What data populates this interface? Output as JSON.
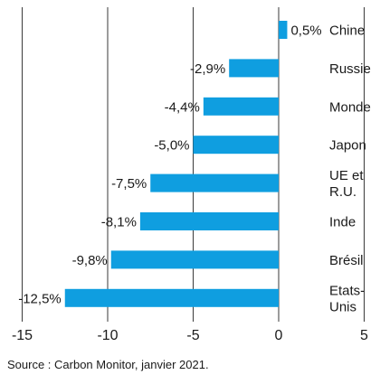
{
  "chart_data": {
    "type": "bar",
    "orientation": "horizontal",
    "categories": [
      [
        "Chine"
      ],
      [
        "Russie"
      ],
      [
        "Monde"
      ],
      [
        "Japon"
      ],
      [
        "UE et",
        "R.U."
      ],
      [
        "Inde"
      ],
      [
        "Brésil"
      ],
      [
        "Etats-",
        "Unis"
      ]
    ],
    "values": [
      0.5,
      -2.9,
      -4.4,
      -5.0,
      -7.5,
      -8.1,
      -9.8,
      -12.5
    ],
    "value_labels": [
      "0,5%",
      "-2,9%",
      "-4,4%",
      "-5,0%",
      "-7,5%",
      "-8,1%",
      "-9,8%",
      "-12,5%"
    ],
    "x_ticks": [
      -15,
      -10,
      -5,
      0,
      5
    ],
    "x_tick_labels": [
      "-15",
      "-10",
      "-5",
      "0",
      "5"
    ],
    "xlim": [
      -15,
      5
    ],
    "grid": "vertical",
    "bar_color": "#0f9ee0",
    "title": "",
    "xlabel": "",
    "ylabel": ""
  },
  "source": "Source : Carbon Monitor, janvier 2021."
}
